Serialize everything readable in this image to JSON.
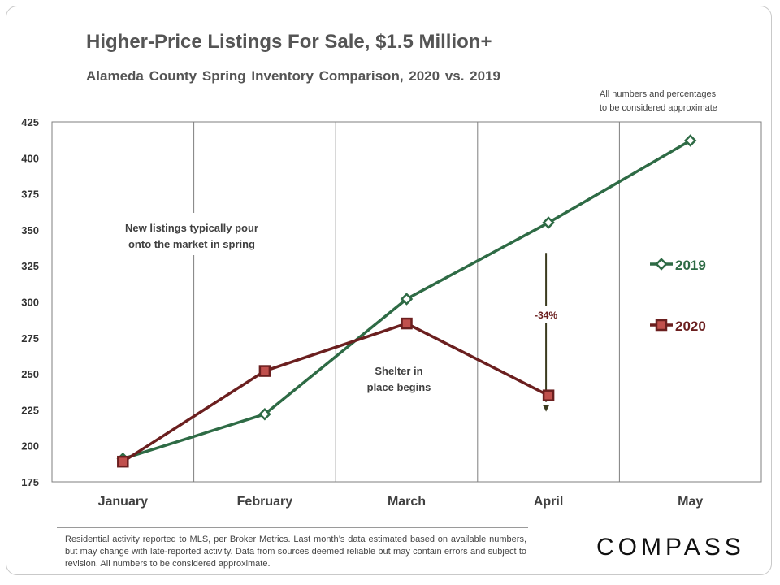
{
  "title": "Higher-Price Listings For Sale, $1.5 Million+",
  "subtitle": "Alameda County Spring Inventory Comparison,  2020 vs. 2019",
  "note_lines": [
    "All numbers and percentages",
    "to be considered approximate"
  ],
  "footnote": "Residential activity reported to MLS, per Broker Metrics. Last month’s data estimated based on available numbers, but may change with late-reported activity. Data from sources deemed reliable but may contain errors and subject to revision. All numbers to be considered approximate.",
  "logo": "COMPASS",
  "chart_data": {
    "type": "line",
    "title": "Higher-Price Listings For Sale, $1.5 Million+",
    "subtitle": "Alameda County Spring Inventory Comparison,  2020 vs. 2019",
    "categories": [
      "January",
      "February",
      "March",
      "April",
      "May"
    ],
    "ylim": [
      175,
      425
    ],
    "yticks": [
      175,
      200,
      225,
      250,
      275,
      300,
      325,
      350,
      375,
      400,
      425
    ],
    "grid": {
      "vertical": true,
      "horizontal": false
    },
    "legend_position": "right",
    "series": [
      {
        "name": "2019",
        "color": "#2e6b45",
        "marker": "diamond",
        "values": [
          191,
          222,
          302,
          355,
          412
        ]
      },
      {
        "name": "2020",
        "color": "#6b1f1f",
        "marker": "square",
        "marker_fill": "#c0504d",
        "values": [
          189,
          252,
          285,
          235,
          null
        ]
      }
    ],
    "annotations": [
      {
        "id": "spring",
        "lines": [
          "New listings typically pour",
          "onto the market in spring"
        ]
      },
      {
        "id": "shelter",
        "lines": [
          "Shelter in",
          "place  begins"
        ]
      },
      {
        "id": "change",
        "text": "-34%",
        "color": "#6b1f1f",
        "arrow_from": 334,
        "arrow_to": 235,
        "at_category": "April"
      }
    ]
  }
}
